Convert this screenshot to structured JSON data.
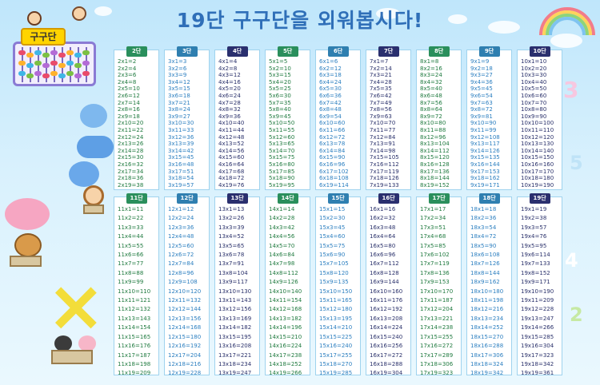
{
  "title": "19단 구구단을 외워봅시다!",
  "abacus_label": "구구단",
  "colors": {
    "header_palette": [
      "#2a8f5c",
      "#2f7fb0",
      "#2a2f6e",
      "#2a8f5c",
      "#2f7fb0",
      "#2a2f6e",
      "#2a8f5c",
      "#2f7fb0",
      "#2a2f6e"
    ],
    "text_palette": [
      "#1f7a3f",
      "#2c7fc0",
      "#29306a",
      "#1f7a3f",
      "#2c7fc0",
      "#29306a",
      "#1f7a3f",
      "#2c7fc0",
      "#29306a"
    ]
  },
  "tables": [
    {
      "label": "2단",
      "rows": [
        "2x1=2",
        "2x2=4",
        "2x3=6",
        "2x4=8",
        "2x5=10",
        "2x6=12",
        "2x7=14",
        "2x8=16",
        "2x9=18",
        "2x10=20",
        "2x11=22",
        "2x12=24",
        "2x13=26",
        "2x14=28",
        "2x15=30",
        "2x16=32",
        "2x17=34",
        "2x18=36",
        "2x19=38"
      ]
    },
    {
      "label": "3단",
      "rows": [
        "3x1=3",
        "3x2=6",
        "3x3=9",
        "3x4=12",
        "3x5=15",
        "3x6=18",
        "3x7=21",
        "3x8=24",
        "3x9=27",
        "3x10=30",
        "3x11=33",
        "3x12=36",
        "3x13=39",
        "3x14=42",
        "3x15=45",
        "3x16=48",
        "3x17=51",
        "3x18=54",
        "3x19=57"
      ]
    },
    {
      "label": "4단",
      "rows": [
        "4x1=4",
        "4x2=8",
        "4x3=12",
        "4x4=16",
        "4x5=20",
        "4x6=24",
        "4x7=28",
        "4x8=32",
        "4x9=36",
        "4x10=40",
        "4x11=44",
        "4x12=48",
        "4x13=52",
        "4x14=56",
        "4x15=60",
        "4x16=64",
        "4x17=68",
        "4x18=72",
        "4x19=76"
      ]
    },
    {
      "label": "5단",
      "rows": [
        "5x1=5",
        "5x2=10",
        "5x3=15",
        "5x4=20",
        "5x5=25",
        "5x6=30",
        "5x7=35",
        "5x8=40",
        "5x9=45",
        "5x10=50",
        "5x11=55",
        "5x12=60",
        "5x13=65",
        "5x14=70",
        "5x15=75",
        "5x16=80",
        "5x17=85",
        "5x18=90",
        "5x19=95"
      ]
    },
    {
      "label": "6단",
      "rows": [
        "6x1=6",
        "6x2=12",
        "6x3=18",
        "6x4=24",
        "6x5=30",
        "6x6=36",
        "6x7=42",
        "6x8=48",
        "6x9=54",
        "6x10=60",
        "6x11=66",
        "6x12=72",
        "6x13=78",
        "6x14=84",
        "6x15=90",
        "6x16=96",
        "6x17=102",
        "6x18=108",
        "6x19=114"
      ]
    },
    {
      "label": "7단",
      "rows": [
        "7x1=7",
        "7x2=14",
        "7x3=21",
        "7x4=28",
        "7x5=35",
        "7x6=42",
        "7x7=49",
        "7x8=56",
        "7x9=63",
        "7x10=70",
        "7x11=77",
        "7x12=84",
        "7x13=91",
        "7x14=98",
        "7x15=105",
        "7x16=112",
        "7x17=119",
        "7x18=126",
        "7x19=133"
      ]
    },
    {
      "label": "8단",
      "rows": [
        "8x1=8",
        "8x2=16",
        "8x3=24",
        "8x4=32",
        "8x5=40",
        "8x6=48",
        "8x7=56",
        "8x8=64",
        "8x9=72",
        "8x10=80",
        "8x11=88",
        "8x12=96",
        "8x13=104",
        "8x14=112",
        "8x15=120",
        "8x16=128",
        "8x17=136",
        "8x18=144",
        "8x19=152"
      ]
    },
    {
      "label": "9단",
      "rows": [
        "9x1=9",
        "9x2=18",
        "9x3=27",
        "9x4=36",
        "9x5=45",
        "9x6=54",
        "9x7=63",
        "9x8=72",
        "9x9=81",
        "9x10=90",
        "9x11=99",
        "9x12=108",
        "9x13=117",
        "9x14=126",
        "9x15=135",
        "9x16=144",
        "9x17=153",
        "9x18=162",
        "9x19=171"
      ]
    },
    {
      "label": "10단",
      "rows": [
        "10x1=10",
        "10x2=20",
        "10x3=30",
        "10x4=40",
        "10x5=50",
        "10x6=60",
        "10x7=70",
        "10x8=80",
        "10x9=90",
        "10x10=100",
        "10x11=110",
        "10x12=120",
        "10x13=130",
        "10x14=140",
        "10x15=150",
        "10x16=160",
        "10x17=170",
        "10x18=180",
        "10x19=190"
      ]
    },
    {
      "label": "11단",
      "rows": [
        "11x1=11",
        "11x2=22",
        "11x3=33",
        "11x4=44",
        "11x5=55",
        "11x6=66",
        "11x7=77",
        "11x8=88",
        "11x9=99",
        "11x10=110",
        "11x11=121",
        "11x12=132",
        "11x13=143",
        "11x14=154",
        "11x15=165",
        "11x16=176",
        "11x17=187",
        "11x18=198",
        "11x19=209"
      ]
    },
    {
      "label": "12단",
      "rows": [
        "12x1=12",
        "12x2=24",
        "12x3=36",
        "12x4=48",
        "12x5=60",
        "12x6=72",
        "12x7=84",
        "12x8=96",
        "12x9=108",
        "12x10=120",
        "12x11=132",
        "12x12=144",
        "12x13=156",
        "12x14=168",
        "12x15=180",
        "12x16=192",
        "12x17=204",
        "12x18=216",
        "12x19=228"
      ]
    },
    {
      "label": "13단",
      "rows": [
        "13x1=13",
        "13x2=26",
        "13x3=39",
        "13x4=52",
        "13x5=65",
        "13x6=78",
        "13x7=91",
        "13x8=104",
        "13x9=117",
        "13x10=130",
        "13x11=143",
        "13x12=156",
        "13x13=169",
        "13x14=182",
        "13x15=195",
        "13x16=208",
        "13x17=221",
        "13x18=234",
        "13x19=247"
      ]
    },
    {
      "label": "14단",
      "rows": [
        "14x1=14",
        "14x2=28",
        "14x3=42",
        "14x4=56",
        "14x5=70",
        "14x6=84",
        "14x7=98",
        "14x8=112",
        "14x9=126",
        "14x10=140",
        "14x11=154",
        "14x12=168",
        "14x13=182",
        "14x14=196",
        "14x15=210",
        "14x16=224",
        "14x17=238",
        "14x18=252",
        "14x19=266"
      ]
    },
    {
      "label": "15단",
      "rows": [
        "15x1=15",
        "15x2=30",
        "15x3=45",
        "15x4=60",
        "15x5=75",
        "15x6=90",
        "15x7=105",
        "15x8=120",
        "15x9=135",
        "15x10=150",
        "15x11=165",
        "15x12=180",
        "15x13=195",
        "15x14=210",
        "15x15=225",
        "15x16=240",
        "15x17=255",
        "15x18=270",
        "15x19=285"
      ]
    },
    {
      "label": "16단",
      "rows": [
        "16x1=16",
        "16x2=32",
        "16x3=48",
        "16x4=64",
        "16x5=80",
        "16x6=96",
        "16x7=112",
        "16x8=128",
        "16x9=144",
        "16x10=160",
        "16x11=176",
        "16x12=192",
        "16x13=208",
        "16x14=224",
        "16x15=240",
        "16x16=256",
        "16x17=272",
        "16x18=288",
        "16x19=304"
      ]
    },
    {
      "label": "17단",
      "rows": [
        "17x1=17",
        "17x2=34",
        "17x3=51",
        "17x4=68",
        "17x5=85",
        "17x6=102",
        "17x7=119",
        "17x8=136",
        "17x9=153",
        "17x10=170",
        "17x11=187",
        "17x12=204",
        "17x13=221",
        "17x14=238",
        "17x15=255",
        "17x16=272",
        "17x17=289",
        "17x18=306",
        "17x19=323"
      ]
    },
    {
      "label": "18단",
      "rows": [
        "18x1=18",
        "18x2=36",
        "18x3=54",
        "18x4=72",
        "18x5=90",
        "18x6=108",
        "18x7=126",
        "18x8=144",
        "18x9=162",
        "18x10=180",
        "18x11=198",
        "18x12=216",
        "18x13=234",
        "18x14=252",
        "18x15=270",
        "18x16=288",
        "18x17=306",
        "18x18=324",
        "18x19=342"
      ]
    },
    {
      "label": "19단",
      "rows": [
        "19x1=19",
        "19x2=38",
        "19x3=57",
        "19x4=76",
        "19x5=95",
        "19x6=114",
        "19x7=133",
        "19x8=152",
        "19x9=171",
        "19x10=190",
        "19x11=209",
        "19x12=228",
        "19x13=247",
        "19x14=266",
        "19x15=285",
        "19x16=304",
        "19x17=323",
        "19x18=342",
        "19x19=361"
      ]
    }
  ]
}
